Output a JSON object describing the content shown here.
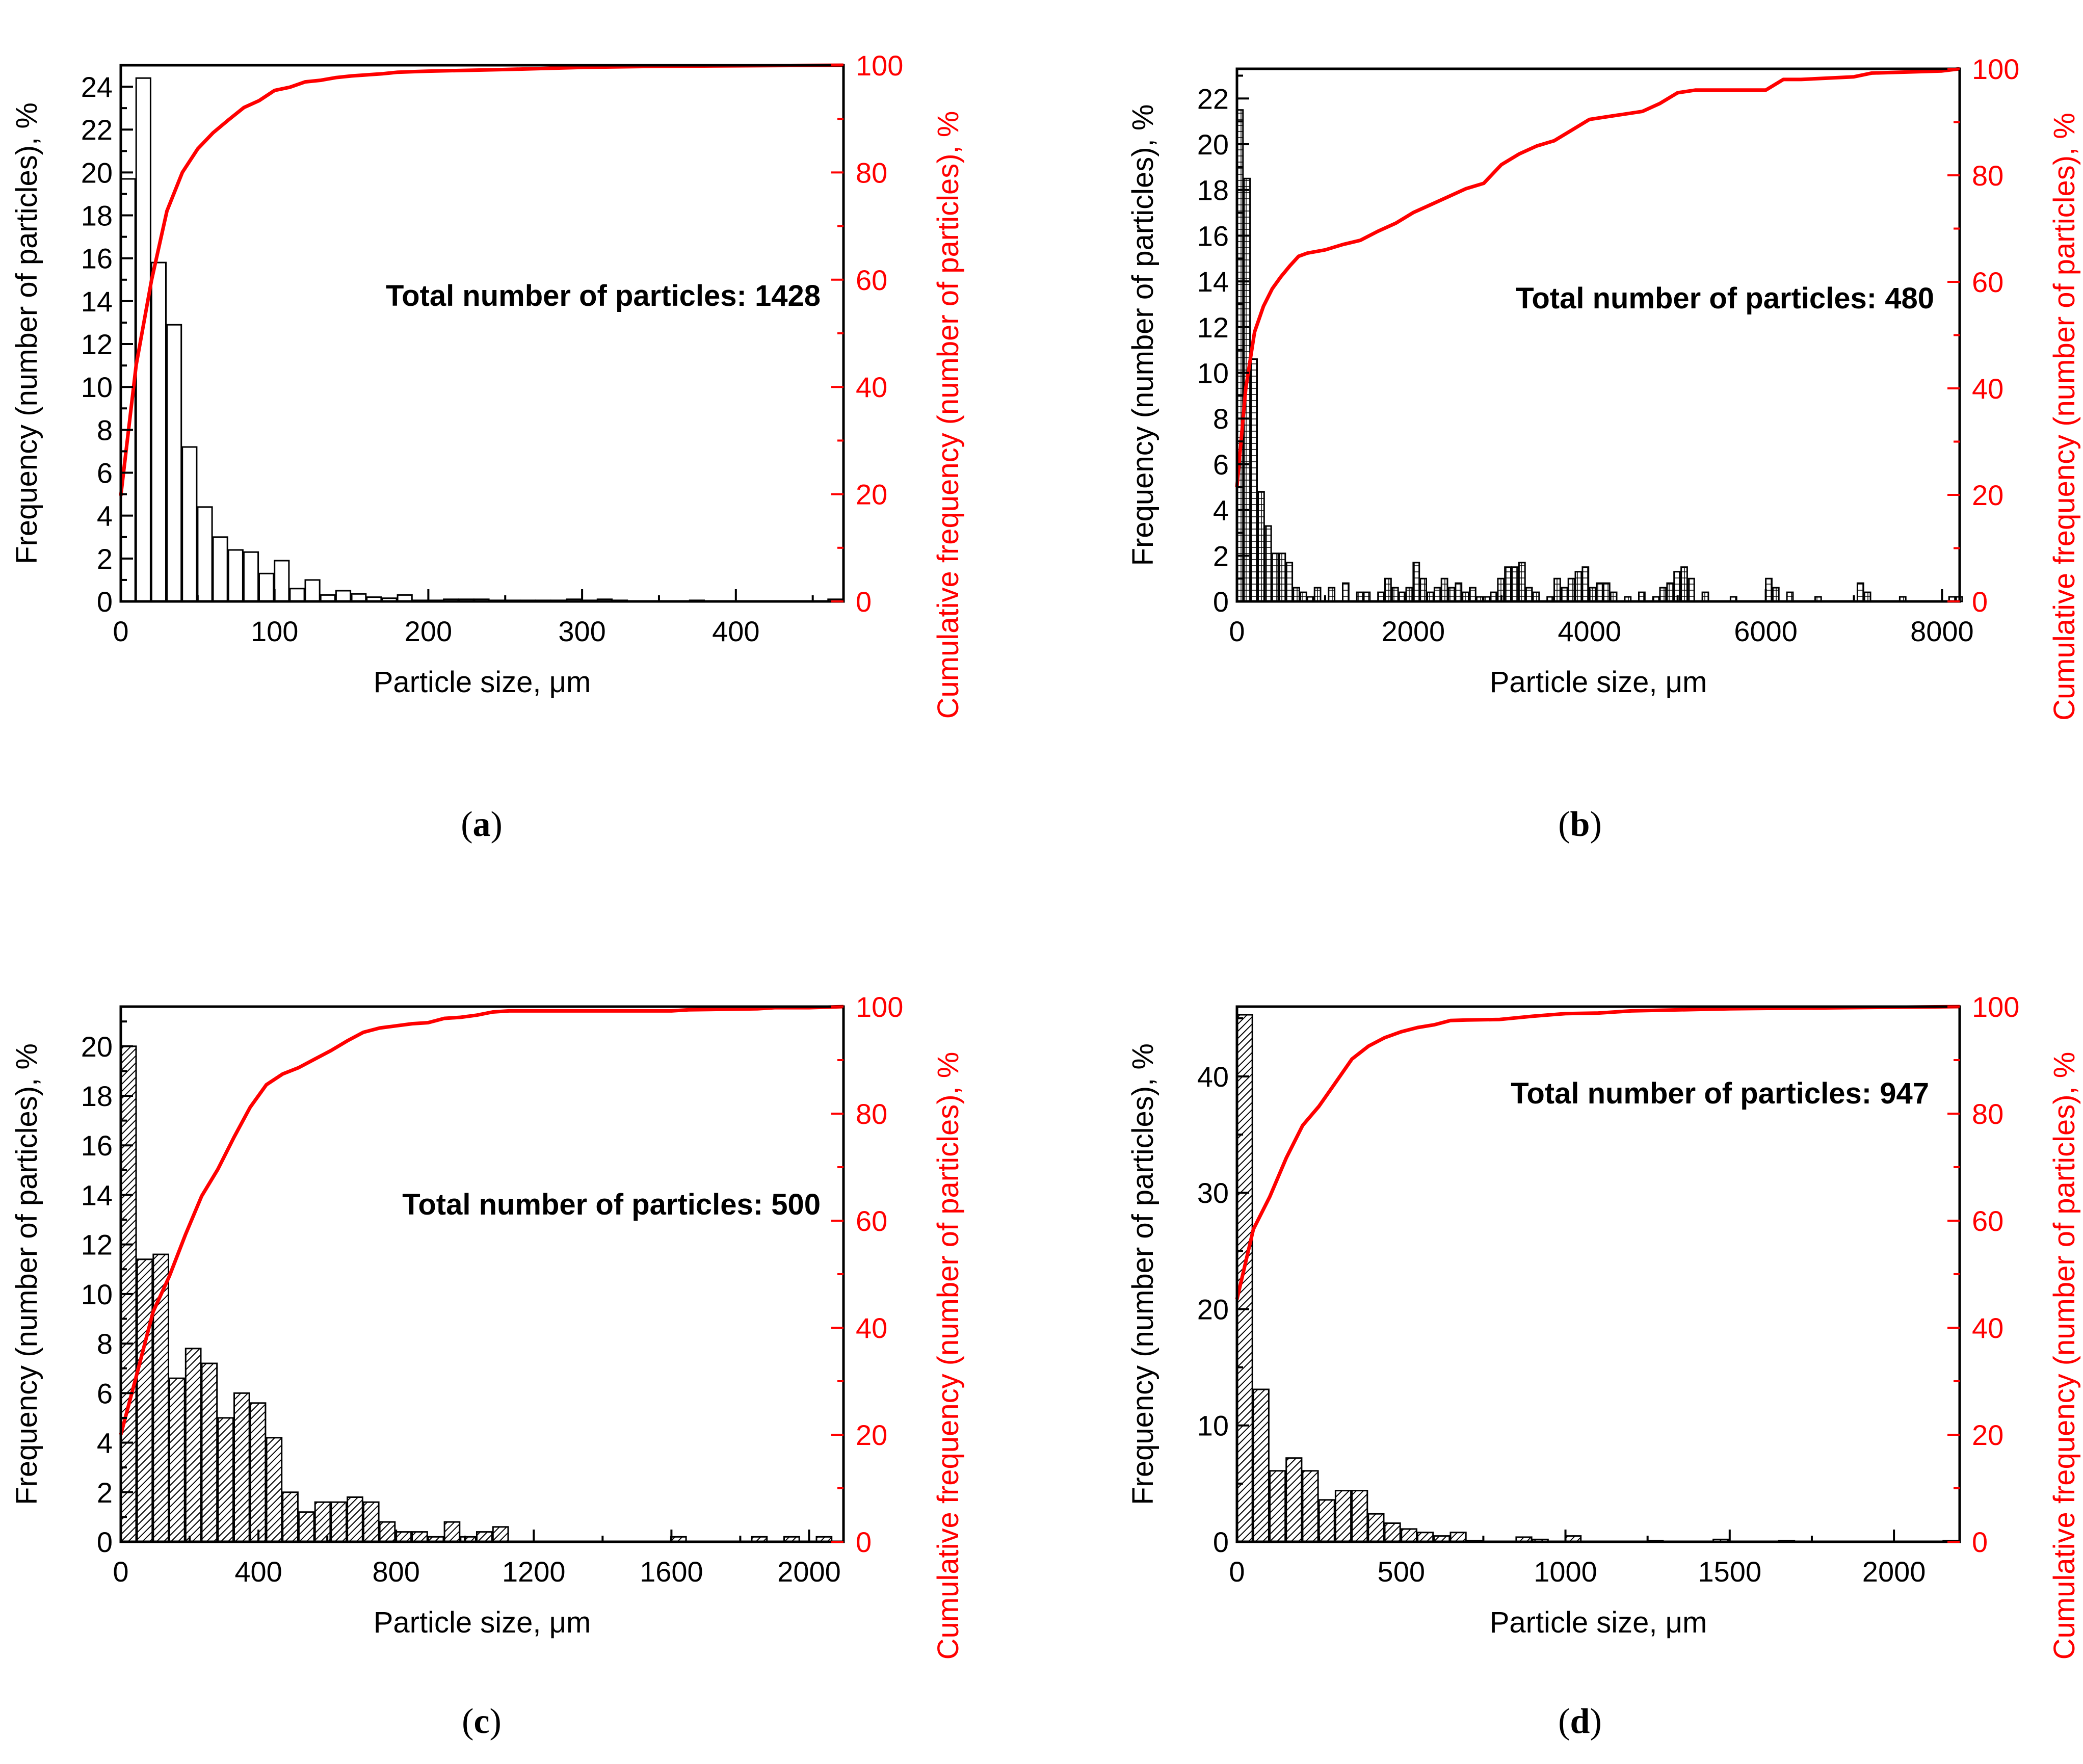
{
  "chart_data": [
    {
      "id": "a",
      "type": "bar",
      "panel_label": "a",
      "title": "",
      "xlabel": "Particle size, μm",
      "ylabel": "Frequency (number of particles), %",
      "y2label": "Cumulative frequency (number of particles), %",
      "annotation": "Total number of particles: 1428",
      "pattern": "plain",
      "xlim": [
        0,
        470
      ],
      "ylim": [
        0,
        25
      ],
      "y2lim": [
        0,
        100
      ],
      "xticks": [
        0,
        100,
        200,
        300,
        400
      ],
      "yticks": [
        0,
        2,
        4,
        6,
        8,
        10,
        12,
        14,
        16,
        18,
        20,
        22,
        24
      ],
      "y2ticks": [
        0,
        20,
        40,
        60,
        80,
        100
      ],
      "bin_width": 10,
      "bars": {
        "x": [
          5,
          15,
          25,
          35,
          45,
          55,
          65,
          75,
          85,
          95,
          105,
          115,
          125,
          135,
          145,
          155,
          165,
          175,
          185,
          195,
          205,
          215,
          225,
          235,
          245,
          255,
          265,
          275,
          285,
          295,
          305,
          315,
          325,
          335,
          345,
          355,
          365,
          375,
          385,
          395,
          405,
          415,
          425,
          435,
          445,
          455,
          465
        ],
        "values": [
          19.7,
          24.4,
          15.8,
          12.9,
          7.2,
          4.4,
          3.0,
          2.4,
          2.3,
          1.3,
          1.9,
          0.6,
          1.0,
          0.3,
          0.5,
          0.35,
          0.2,
          0.15,
          0.3,
          0.05,
          0.05,
          0.1,
          0.1,
          0.1,
          0.05,
          0.05,
          0.05,
          0.05,
          0.05,
          0.1,
          0.05,
          0.1,
          0.05,
          0.0,
          0.0,
          0.0,
          0.0,
          0.05,
          0.0,
          0.0,
          0.0,
          0.0,
          0.0,
          0.0,
          0.0,
          0.0,
          0.1
        ]
      },
      "cumulative": {
        "x": [
          0,
          10,
          20,
          30,
          40,
          50,
          60,
          70,
          80,
          90,
          100,
          110,
          120,
          130,
          140,
          150,
          160,
          170,
          180,
          190,
          200,
          250,
          300,
          350,
          400,
          470
        ],
        "values": [
          19.7,
          44.1,
          59.9,
          72.8,
          80.0,
          84.4,
          87.4,
          89.8,
          92.1,
          93.4,
          95.3,
          95.9,
          96.9,
          97.2,
          97.7,
          98.0,
          98.2,
          98.4,
          98.7,
          98.8,
          98.9,
          99.2,
          99.6,
          99.8,
          99.9,
          100.0
        ]
      }
    },
    {
      "id": "b",
      "type": "bar",
      "panel_label": "b",
      "title": "",
      "xlabel": "Particle size, μm",
      "ylabel": "Frequency (number of particles), %",
      "y2label": "Cumulative frequency (number of particles), %",
      "annotation": "Total number of particles: 480",
      "pattern": "grid",
      "xlim": [
        0,
        8200
      ],
      "ylim": [
        0,
        23.3
      ],
      "y2lim": [
        0,
        100
      ],
      "xticks": [
        0,
        2000,
        4000,
        6000,
        8000
      ],
      "yticks": [
        0,
        2,
        4,
        6,
        8,
        10,
        12,
        14,
        16,
        18,
        20,
        22
      ],
      "y2ticks": [
        0,
        20,
        40,
        60,
        80,
        100
      ],
      "bin_width": 80,
      "bars": {
        "x": [
          40,
          120,
          200,
          280,
          360,
          440,
          520,
          600,
          680,
          760,
          840,
          920,
          1080,
          1240,
          1400,
          1480,
          1640,
          1720,
          1800,
          1880,
          1960,
          2040,
          2120,
          2200,
          2280,
          2360,
          2440,
          2520,
          2600,
          2680,
          2760,
          2840,
          2920,
          3000,
          3080,
          3160,
          3240,
          3320,
          3400,
          3560,
          3640,
          3720,
          3800,
          3880,
          3960,
          4040,
          4120,
          4200,
          4280,
          4440,
          4600,
          4760,
          4840,
          4920,
          5000,
          5080,
          5160,
          5320,
          5640,
          6040,
          6120,
          6280,
          6600,
          7080,
          7160,
          7560,
          8120,
          8200
        ],
        "values": [
          21.5,
          18.5,
          10.6,
          4.8,
          3.3,
          2.1,
          2.1,
          1.7,
          0.6,
          0.4,
          0.2,
          0.6,
          0.6,
          0.8,
          0.4,
          0.4,
          0.4,
          1.0,
          0.6,
          0.4,
          0.6,
          1.7,
          1.0,
          0.4,
          0.6,
          1.0,
          0.6,
          0.8,
          0.4,
          0.6,
          0.2,
          0.2,
          0.4,
          1.0,
          1.5,
          1.5,
          1.7,
          0.6,
          0.4,
          0.2,
          1.0,
          0.6,
          1.0,
          1.3,
          1.5,
          0.6,
          0.8,
          0.8,
          0.4,
          0.2,
          0.4,
          0.2,
          0.6,
          0.8,
          1.3,
          1.5,
          1.0,
          0.4,
          0.2,
          1.0,
          0.6,
          0.4,
          0.2,
          0.8,
          0.4,
          0.2,
          0.2,
          0.2
        ]
      },
      "cumulative": {
        "x": [
          0,
          100,
          200,
          300,
          400,
          500,
          600,
          700,
          800,
          1000,
          1200,
          1400,
          1600,
          1800,
          2000,
          2200,
          2400,
          2600,
          2800,
          3000,
          3200,
          3400,
          3600,
          3800,
          4000,
          4200,
          4400,
          4600,
          4800,
          5000,
          5200,
          5400,
          6000,
          6200,
          6400,
          7000,
          7200,
          8000,
          8200
        ],
        "values": [
          21.5,
          40.0,
          50.6,
          55.4,
          58.7,
          61.0,
          63.0,
          64.8,
          65.4,
          66.0,
          67.0,
          67.8,
          69.5,
          71.0,
          73.0,
          74.5,
          76.0,
          77.5,
          78.5,
          82.0,
          84.0,
          85.5,
          86.5,
          88.5,
          90.5,
          91.0,
          91.5,
          92.0,
          93.5,
          95.5,
          96.0,
          96.0,
          96.0,
          98.0,
          98.0,
          98.5,
          99.2,
          99.6,
          100.0
        ]
      }
    },
    {
      "id": "c",
      "type": "bar",
      "panel_label": "c",
      "title": "",
      "xlabel": "Particle size, μm",
      "ylabel": "Frequency (number of particles), %",
      "y2label": "Cumulative frequency (number of particles), %",
      "annotation": "Total number of particles: 500",
      "pattern": "hatch",
      "xlim": [
        0,
        2100
      ],
      "ylim": [
        0,
        21.6
      ],
      "y2lim": [
        0,
        100
      ],
      "xticks": [
        0,
        400,
        800,
        1200,
        1600,
        2000
      ],
      "yticks": [
        0,
        2,
        4,
        6,
        8,
        10,
        12,
        14,
        16,
        18,
        20
      ],
      "y2ticks": [
        0,
        20,
        40,
        60,
        80,
        100
      ],
      "bin_width": 47,
      "bars": {
        "x": [
          24,
          71,
          118,
          165,
          212,
          259,
          306,
          353,
          400,
          447,
          494,
          541,
          588,
          635,
          682,
          729,
          776,
          823,
          870,
          917,
          964,
          1011,
          1058,
          1105,
          1152,
          1622,
          1857,
          1951,
          2045
        ],
        "values": [
          20.0,
          11.4,
          11.6,
          6.6,
          7.8,
          7.2,
          5.0,
          6.0,
          5.6,
          4.2,
          2.0,
          1.2,
          1.6,
          1.6,
          1.8,
          1.6,
          0.8,
          0.4,
          0.4,
          0.2,
          0.8,
          0.2,
          0.4,
          0.6,
          0.0,
          0.2,
          0.2,
          0.2,
          0.2
        ]
      },
      "cumulative": {
        "x": [
          0,
          47,
          94,
          141,
          188,
          235,
          282,
          329,
          376,
          423,
          470,
          517,
          564,
          611,
          658,
          705,
          752,
          799,
          846,
          893,
          940,
          987,
          1034,
          1081,
          1128,
          1175,
          1600,
          1650,
          1850,
          1900,
          2000,
          2100
        ],
        "values": [
          20.0,
          31.4,
          43.0,
          49.6,
          57.4,
          64.6,
          69.6,
          75.6,
          81.2,
          85.4,
          87.4,
          88.6,
          90.2,
          91.8,
          93.6,
          95.2,
          96.0,
          96.4,
          96.8,
          97.0,
          97.8,
          98.0,
          98.4,
          99.0,
          99.2,
          99.2,
          99.2,
          99.4,
          99.6,
          99.8,
          99.8,
          100.0
        ]
      }
    },
    {
      "id": "d",
      "type": "bar",
      "panel_label": "d",
      "title": "",
      "xlabel": "Particle size, μm",
      "ylabel": "Frequency (number of particles), %",
      "y2label": "Cumulative frequency (number of particles), %",
      "annotation": "Total number of particles: 947",
      "pattern": "hatch",
      "xlim": [
        0,
        2200
      ],
      "ylim": [
        0,
        46
      ],
      "y2lim": [
        0,
        100
      ],
      "xticks": [
        0,
        500,
        1000,
        1500,
        2000
      ],
      "yticks": [
        0,
        10,
        20,
        30,
        40
      ],
      "y2ticks": [
        0,
        20,
        40,
        60,
        80,
        100
      ],
      "bin_width": 50,
      "bars": {
        "x": [
          25,
          75,
          125,
          175,
          225,
          275,
          325,
          375,
          425,
          475,
          525,
          575,
          625,
          675,
          725,
          875,
          925,
          1025,
          1275,
          1475,
          1675,
          2175
        ],
        "values": [
          45.3,
          13.1,
          6.1,
          7.2,
          6.1,
          3.6,
          4.4,
          4.4,
          2.4,
          1.6,
          1.1,
          0.8,
          0.5,
          0.8,
          0.1,
          0.4,
          0.2,
          0.5,
          0.1,
          0.2,
          0.1,
          0.1
        ]
      },
      "cumulative": {
        "x": [
          0,
          50,
          100,
          150,
          200,
          250,
          300,
          350,
          400,
          450,
          500,
          550,
          600,
          650,
          700,
          800,
          900,
          1000,
          1100,
          1200,
          1500,
          2200
        ],
        "values": [
          45.3,
          58.4,
          64.5,
          71.7,
          77.8,
          81.4,
          85.8,
          90.2,
          92.6,
          94.2,
          95.3,
          96.1,
          96.6,
          97.4,
          97.5,
          97.6,
          98.2,
          98.7,
          98.8,
          99.2,
          99.6,
          100.0
        ]
      }
    }
  ]
}
